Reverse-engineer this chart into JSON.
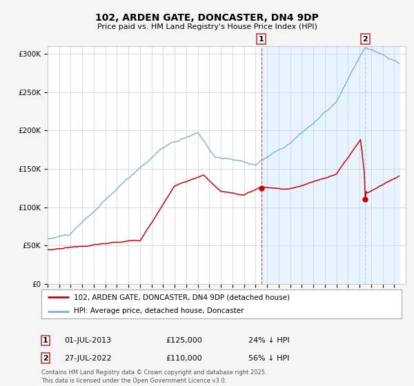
{
  "title": "102, ARDEN GATE, DONCASTER, DN4 9DP",
  "subtitle": "Price paid vs. HM Land Registry's House Price Index (HPI)",
  "ylim": [
    0,
    310000
  ],
  "yticks": [
    0,
    50000,
    100000,
    150000,
    200000,
    250000,
    300000
  ],
  "ytick_labels": [
    "£0",
    "£50K",
    "£100K",
    "£150K",
    "£200K",
    "£250K",
    "£300K"
  ],
  "red_color": "#cc0000",
  "blue_color": "#7aade0",
  "shade_color": "#ddeeff",
  "marker2_vline_color": "#aaccee",
  "marker1_vline_color": "#dd4444",
  "legend_line1": "102, ARDEN GATE, DONCASTER, DN4 9DP (detached house)",
  "legend_line2": "HPI: Average price, detached house, Doncaster",
  "footer": "Contains HM Land Registry data © Crown copyright and database right 2025.\nThis data is licensed under the Open Government Licence v3.0.",
  "background_color": "#f5f5f5",
  "plot_bg_color": "#ffffff"
}
